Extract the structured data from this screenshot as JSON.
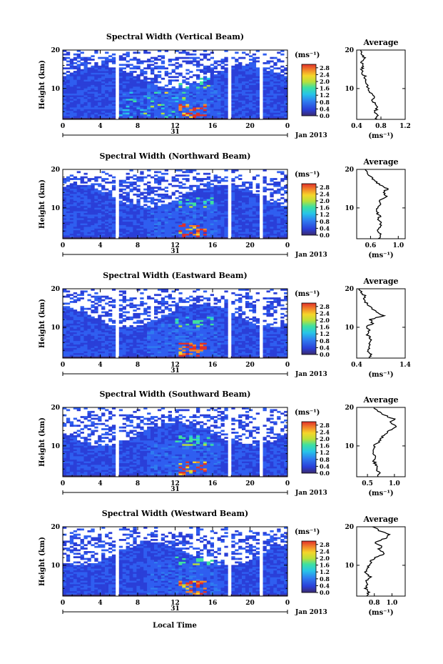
{
  "figure": {
    "xlabel": "Local Time",
    "date_label": "Jan 2013",
    "day_label": "31",
    "colorbar_unit": "(ms⁻¹)",
    "avg_xlabel": "(ms⁻¹)",
    "avg_title": "Average"
  },
  "chart_data": [
    {
      "type": "heatmap",
      "title": "Spectral Width (Vertical Beam)",
      "xlabel": "Local Time",
      "ylabel": "Height (km)",
      "xticks": [
        "0",
        "4",
        "8",
        "12",
        "16",
        "20",
        "0"
      ],
      "yticks": [
        "10",
        "20"
      ],
      "xlim": [
        0,
        24
      ],
      "ylim": [
        2,
        20
      ],
      "colorbar": {
        "unit": "(ms⁻¹)",
        "ticks": [
          "0.0",
          "0.4",
          "0.8",
          "1.2",
          "1.6",
          "2.0",
          "2.4",
          "2.8"
        ],
        "range": [
          0,
          3.0
        ]
      },
      "data_gaps_hours": [
        [
          5.6,
          6.1
        ],
        [
          17.5,
          18.0
        ],
        [
          21.0,
          21.5
        ]
      ],
      "avg_profile": {
        "xlim": [
          0.4,
          1.2
        ],
        "xticks": [
          "0.4",
          "0.8",
          "1.2"
        ],
        "height": [
          2,
          3,
          4,
          5,
          6,
          7,
          8,
          9,
          10,
          11,
          12,
          13,
          14,
          15,
          16,
          17,
          18,
          19,
          20
        ],
        "value": [
          0.72,
          0.75,
          0.7,
          0.74,
          0.7,
          0.66,
          0.68,
          0.63,
          0.6,
          0.57,
          0.56,
          0.54,
          0.5,
          0.49,
          0.5,
          0.47,
          0.52,
          0.49,
          0.47
        ]
      }
    },
    {
      "type": "heatmap",
      "title": "Spectral Width (Northward Beam)",
      "xlabel": "Local Time",
      "ylabel": "Height (km)",
      "xticks": [
        "0",
        "4",
        "8",
        "12",
        "16",
        "20",
        "0"
      ],
      "yticks": [
        "10",
        "20"
      ],
      "xlim": [
        0,
        24
      ],
      "ylim": [
        2,
        20
      ],
      "colorbar": {
        "unit": "(ms⁻¹)",
        "ticks": [
          "0.0",
          "0.4",
          "0.8",
          "1.2",
          "1.6",
          "2.0",
          "2.4",
          "2.8"
        ],
        "range": [
          0,
          3.0
        ]
      },
      "data_gaps_hours": [
        [
          5.6,
          6.1
        ],
        [
          17.5,
          18.0
        ],
        [
          21.0,
          21.5
        ]
      ],
      "avg_profile": {
        "xlim": [
          0.4,
          1.1
        ],
        "xticks": [
          "0.6",
          "1.0"
        ],
        "height": [
          2,
          3,
          4,
          5,
          6,
          7,
          8,
          9,
          10,
          11,
          12,
          13,
          14,
          15,
          16,
          17,
          18,
          19,
          20
        ],
        "value": [
          0.72,
          0.75,
          0.7,
          0.73,
          0.76,
          0.7,
          0.74,
          0.68,
          0.7,
          0.75,
          0.72,
          0.82,
          0.78,
          0.85,
          0.74,
          0.66,
          0.6,
          0.55,
          0.52
        ]
      }
    },
    {
      "type": "heatmap",
      "title": "Spectral Width (Eastward Beam)",
      "xlabel": "Local Time",
      "ylabel": "Height (km)",
      "xticks": [
        "0",
        "4",
        "8",
        "12",
        "16",
        "20",
        "0"
      ],
      "yticks": [
        "10",
        "20"
      ],
      "xlim": [
        0,
        24
      ],
      "ylim": [
        2,
        20
      ],
      "colorbar": {
        "unit": "(ms⁻¹)",
        "ticks": [
          "0.0",
          "0.4",
          "0.8",
          "1.2",
          "1.6",
          "2.0",
          "2.4",
          "2.8"
        ],
        "range": [
          0,
          3.0
        ]
      },
      "data_gaps_hours": [
        [
          5.6,
          6.1
        ],
        [
          17.5,
          18.0
        ],
        [
          21.0,
          21.5
        ]
      ],
      "avg_profile": {
        "xlim": [
          0.4,
          1.4
        ],
        "xticks": [
          "0.4",
          "1.4"
        ],
        "height": [
          2,
          3,
          4,
          5,
          6,
          7,
          8,
          9,
          10,
          11,
          12,
          13,
          14,
          15,
          16,
          17,
          18,
          19,
          20
        ],
        "value": [
          0.65,
          0.7,
          0.63,
          0.68,
          0.64,
          0.7,
          0.62,
          0.66,
          0.6,
          0.72,
          0.68,
          0.95,
          0.8,
          0.7,
          0.62,
          0.55,
          0.58,
          0.5,
          0.46
        ]
      }
    },
    {
      "type": "heatmap",
      "title": "Spectral Width (Southward Beam)",
      "xlabel": "Local Time",
      "ylabel": "Height (km)",
      "xticks": [
        "0",
        "4",
        "8",
        "12",
        "16",
        "20",
        "0"
      ],
      "yticks": [
        "10",
        "20"
      ],
      "xlim": [
        0,
        24
      ],
      "ylim": [
        2,
        20
      ],
      "colorbar": {
        "unit": "(ms⁻¹)",
        "ticks": [
          "0.0",
          "0.4",
          "0.8",
          "1.2",
          "1.6",
          "2.0",
          "2.4",
          "2.8"
        ],
        "range": [
          0,
          3.0
        ]
      },
      "data_gaps_hours": [
        [
          5.6,
          6.1
        ],
        [
          17.5,
          18.0
        ],
        [
          21.0,
          21.5
        ]
      ],
      "avg_profile": {
        "xlim": [
          0.3,
          1.2
        ],
        "xticks": [
          "0.5",
          "1.0"
        ],
        "height": [
          2,
          3,
          4,
          5,
          6,
          7,
          8,
          9,
          10,
          11,
          12,
          13,
          14,
          15,
          16,
          17,
          18,
          19,
          20
        ],
        "value": [
          0.7,
          0.72,
          0.68,
          0.66,
          0.62,
          0.65,
          0.6,
          0.63,
          0.62,
          0.7,
          0.75,
          0.82,
          0.9,
          1.05,
          0.92,
          1.0,
          0.8,
          0.7,
          0.62
        ]
      }
    },
    {
      "type": "heatmap",
      "title": "Spectral Width (Westward Beam)",
      "xlabel": "Local Time",
      "ylabel": "Height (km)",
      "xticks": [
        "0",
        "4",
        "8",
        "12",
        "16",
        "20",
        "0"
      ],
      "yticks": [
        "10",
        "20"
      ],
      "xlim": [
        0,
        24
      ],
      "ylim": [
        2,
        20
      ],
      "colorbar": {
        "unit": "(ms⁻¹)",
        "ticks": [
          "0.0",
          "0.4",
          "0.8",
          "1.2",
          "1.6",
          "2.0",
          "2.4",
          "2.8"
        ],
        "range": [
          0,
          3.0
        ]
      },
      "data_gaps_hours": [
        [
          5.6,
          6.1
        ],
        [
          17.5,
          18.0
        ],
        [
          21.0,
          21.5
        ]
      ],
      "avg_profile": {
        "xlim": [
          0.6,
          1.15
        ],
        "xticks": [
          "0.8",
          "1.0"
        ],
        "height": [
          2,
          3,
          4,
          5,
          6,
          7,
          8,
          9,
          10,
          11,
          12,
          13,
          14,
          15,
          16,
          17,
          18,
          19,
          20
        ],
        "value": [
          0.72,
          0.74,
          0.7,
          0.73,
          0.71,
          0.75,
          0.7,
          0.72,
          0.74,
          0.76,
          0.8,
          0.92,
          0.85,
          0.88,
          0.8,
          0.92,
          0.98,
          0.86,
          0.78
        ]
      }
    }
  ]
}
